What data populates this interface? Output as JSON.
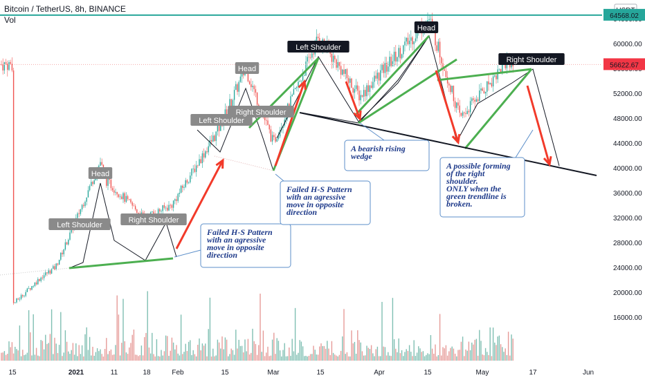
{
  "header": {
    "symbol": "Bitcoin / TetherUS, 8h, BINANCE",
    "indicator": "Vol"
  },
  "currency_label": "USDT",
  "price_tags": {
    "level": "64568.02",
    "current": "56622.67"
  },
  "colors": {
    "up": "#26a69a",
    "down": "#ef5350",
    "trend": "#4caf50",
    "arrow": "#f23a2a",
    "level_line": "#26a69a",
    "current_tag": "#f23645",
    "note_text": "#1e3a8a"
  },
  "chart_data": {
    "type": "candlestick",
    "title": "Bitcoin / TetherUS, 8h, BINANCE",
    "ylim": [
      13000,
      68000
    ],
    "y_ticks": [
      "16000.00",
      "20000.00",
      "24000.00",
      "28000.00",
      "32000.00",
      "36000.00",
      "40000.00",
      "44000.00",
      "48000.00",
      "52000.00",
      "56000.00",
      "60000.00",
      "64000.00",
      "68000.00"
    ],
    "x_ticks": [
      "15",
      "2021",
      "11",
      "18",
      "Feb",
      "15",
      "Mar",
      "15",
      "Apr",
      "15",
      "May",
      "17",
      "Jun"
    ],
    "price_path_close": [
      {
        "date": "Dec 10",
        "price": 18000
      },
      {
        "date": "Dec 17",
        "price": 22500
      },
      {
        "date": "Dec 24",
        "price": 24000
      },
      {
        "date": "Dec 31",
        "price": 29000
      },
      {
        "date": "Jan 8",
        "price": 41000
      },
      {
        "date": "Jan 10",
        "price": 38000
      },
      {
        "date": "Jan 14",
        "price": 37500
      },
      {
        "date": "Jan 22",
        "price": 32000
      },
      {
        "date": "Jan 29",
        "price": 34000
      },
      {
        "date": "Feb 8",
        "price": 46000
      },
      {
        "date": "Feb 21",
        "price": 56000
      },
      {
        "date": "Feb 28",
        "price": 44000
      },
      {
        "date": "Mar 13",
        "price": 61000
      },
      {
        "date": "Mar 25",
        "price": 51500
      },
      {
        "date": "Apr 14",
        "price": 64000
      },
      {
        "date": "Apr 25",
        "price": 48000
      },
      {
        "date": "May 3",
        "price": 57500
      },
      {
        "date": "May 7",
        "price": 56622.67
      }
    ],
    "horizontal_level": 64568.02,
    "current_price": 56622.67,
    "annotations": {
      "head1": "Head",
      "left_shoulder1": "Left Shoulder",
      "right_shoulder1": "Right Shoulder",
      "head2": "Head",
      "left_shoulder2": "Left Shoulder",
      "right_shoulder2": "Right Shoulder",
      "head3": "Head",
      "left_shoulder3": "Left Shoulder",
      "right_shoulder3": "Right Shoulder",
      "note1": [
        "Failed  H-S Pattern",
        "with an agressive",
        "move in opposite",
        "direction"
      ],
      "note2": [
        "Failed  H-S Pattern",
        "with an agressive",
        "move in opposite",
        "direction"
      ],
      "note3": [
        "A bearish rising",
        "wedge"
      ],
      "note4": [
        "A possible forming",
        "of the right",
        "shoulder.",
        "ONLY when the",
        "green trendline is",
        "broken."
      ]
    }
  }
}
